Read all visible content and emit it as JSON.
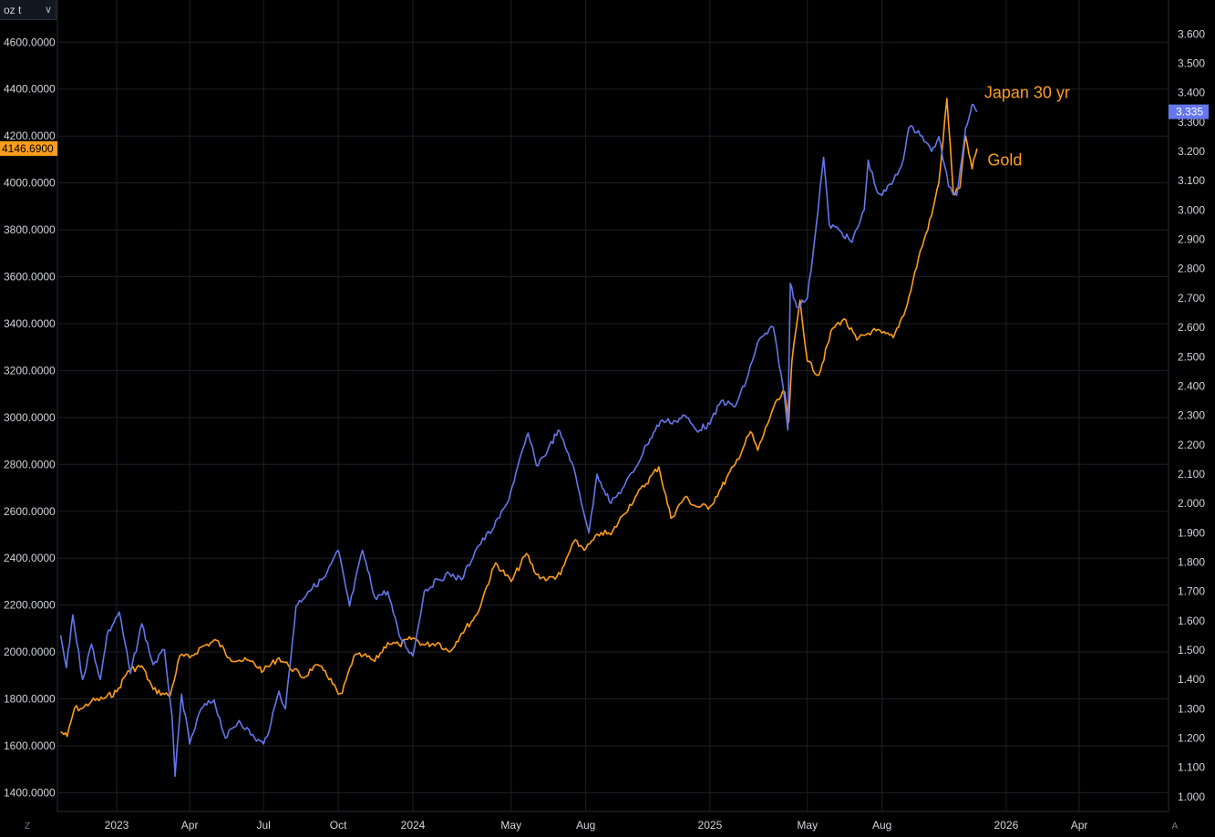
{
  "unit_selector": {
    "label": "oz t",
    "icon": "chevron-down-icon"
  },
  "corner_buttons": {
    "left": "Z",
    "right": "A"
  },
  "colors": {
    "background": "#000000",
    "grid": "#1c1f26",
    "axis_text": "#d1d4dc",
    "gold": "#ff9d1e",
    "japan": "#6477ec"
  },
  "chart_data": {
    "type": "line",
    "title": "",
    "x_axis": {
      "ticks": [
        "2023",
        "Apr",
        "Jul",
        "Oct",
        "2024",
        "May",
        "Aug",
        "2025",
        "May",
        "Aug",
        "2026",
        "Apr"
      ],
      "tick_dates": [
        "2023-01-01",
        "2023-04-01",
        "2023-07-01",
        "2023-10-01",
        "2024-01-01",
        "2024-05-01",
        "2024-08-01",
        "2025-01-01",
        "2025-05-01",
        "2025-08-01",
        "2026-01-01",
        "2026-04-01"
      ],
      "range": [
        "2022-10-20",
        "2026-07-20"
      ]
    },
    "y_left": {
      "unit": "oz t",
      "ticks": [
        "1400.0000",
        "1600.0000",
        "1800.0000",
        "2000.0000",
        "2200.0000",
        "2400.0000",
        "2600.0000",
        "2800.0000",
        "3000.0000",
        "3200.0000",
        "3400.0000",
        "3600.0000",
        "3800.0000",
        "4000.0000",
        "4200.0000",
        "4400.0000",
        "4600.0000"
      ],
      "range": [
        1320,
        4780
      ]
    },
    "y_right": {
      "ticks": [
        "1.000",
        "1.100",
        "1.200",
        "1.300",
        "1.400",
        "1.500",
        "1.600",
        "1.700",
        "1.800",
        "1.900",
        "2.000",
        "2.100",
        "2.200",
        "2.300",
        "2.400",
        "2.500",
        "2.600",
        "2.700",
        "2.800",
        "2.900",
        "3.000",
        "3.100",
        "3.200",
        "3.300",
        "3.400",
        "3.500",
        "3.600"
      ],
      "range": [
        0.95,
        3.716
      ]
    },
    "grid": true,
    "series": [
      {
        "name": "Gold",
        "axis": "left",
        "color": "#ff9d1e",
        "last_value_label": "4146.6900",
        "points": [
          [
            "2022-10-24",
            1660
          ],
          [
            "2022-11-01",
            1640
          ],
          [
            "2022-11-10",
            1760
          ],
          [
            "2022-11-20",
            1760
          ],
          [
            "2022-12-01",
            1790
          ],
          [
            "2022-12-15",
            1800
          ],
          [
            "2023-01-01",
            1830
          ],
          [
            "2023-01-15",
            1920
          ],
          [
            "2023-02-01",
            1940
          ],
          [
            "2023-02-15",
            1840
          ],
          [
            "2023-03-01",
            1820
          ],
          [
            "2023-03-08",
            1815
          ],
          [
            "2023-03-20",
            1985
          ],
          [
            "2023-04-01",
            1975
          ],
          [
            "2023-04-15",
            2020
          ],
          [
            "2023-05-04",
            2050
          ],
          [
            "2023-05-20",
            1975
          ],
          [
            "2023-06-01",
            1965
          ],
          [
            "2023-06-15",
            1960
          ],
          [
            "2023-07-01",
            1920
          ],
          [
            "2023-07-20",
            1975
          ],
          [
            "2023-08-01",
            1940
          ],
          [
            "2023-08-20",
            1890
          ],
          [
            "2023-09-01",
            1940
          ],
          [
            "2023-09-15",
            1920
          ],
          [
            "2023-10-01",
            1820
          ],
          [
            "2023-10-06",
            1825
          ],
          [
            "2023-10-20",
            1980
          ],
          [
            "2023-11-01",
            1985
          ],
          [
            "2023-11-15",
            1960
          ],
          [
            "2023-12-01",
            2040
          ],
          [
            "2023-12-15",
            2030
          ],
          [
            "2024-01-01",
            2060
          ],
          [
            "2024-01-15",
            2030
          ],
          [
            "2024-02-01",
            2040
          ],
          [
            "2024-02-15",
            2000
          ],
          [
            "2024-03-01",
            2080
          ],
          [
            "2024-03-20",
            2160
          ],
          [
            "2024-04-01",
            2280
          ],
          [
            "2024-04-12",
            2380
          ],
          [
            "2024-05-01",
            2300
          ],
          [
            "2024-05-20",
            2420
          ],
          [
            "2024-06-01",
            2330
          ],
          [
            "2024-06-15",
            2310
          ],
          [
            "2024-07-01",
            2330
          ],
          [
            "2024-07-17",
            2470
          ],
          [
            "2024-08-01",
            2440
          ],
          [
            "2024-08-20",
            2510
          ],
          [
            "2024-09-01",
            2500
          ],
          [
            "2024-09-15",
            2580
          ],
          [
            "2024-10-01",
            2660
          ],
          [
            "2024-10-30",
            2790
          ],
          [
            "2024-11-14",
            2570
          ],
          [
            "2024-12-01",
            2660
          ],
          [
            "2024-12-15",
            2620
          ],
          [
            "2025-01-01",
            2620
          ],
          [
            "2025-01-15",
            2700
          ],
          [
            "2025-02-01",
            2800
          ],
          [
            "2025-02-20",
            2940
          ],
          [
            "2025-03-01",
            2860
          ],
          [
            "2025-03-20",
            3040
          ],
          [
            "2025-04-03",
            3110
          ],
          [
            "2025-04-08",
            2980
          ],
          [
            "2025-04-12",
            3240
          ],
          [
            "2025-04-22",
            3500
          ],
          [
            "2025-05-01",
            3240
          ],
          [
            "2025-05-15",
            3180
          ],
          [
            "2025-06-01",
            3380
          ],
          [
            "2025-06-15",
            3420
          ],
          [
            "2025-07-01",
            3330
          ],
          [
            "2025-07-20",
            3370
          ],
          [
            "2025-08-01",
            3360
          ],
          [
            "2025-08-15",
            3340
          ],
          [
            "2025-09-01",
            3480
          ],
          [
            "2025-09-15",
            3680
          ],
          [
            "2025-10-01",
            3860
          ],
          [
            "2025-10-10",
            4000
          ],
          [
            "2025-10-20",
            4360
          ],
          [
            "2025-10-28",
            3950
          ],
          [
            "2025-11-05",
            3980
          ],
          [
            "2025-11-12",
            4200
          ],
          [
            "2025-11-20",
            4060
          ],
          [
            "2025-11-26",
            4146.69
          ]
        ]
      },
      {
        "name": "Japan 30 yr",
        "axis": "right",
        "color": "#6477ec",
        "last_value_label": "3.335",
        "points": [
          [
            "2022-10-24",
            1.55
          ],
          [
            "2022-10-31",
            1.44
          ],
          [
            "2022-11-08",
            1.62
          ],
          [
            "2022-11-20",
            1.4
          ],
          [
            "2022-12-01",
            1.52
          ],
          [
            "2022-12-12",
            1.4
          ],
          [
            "2022-12-20",
            1.55
          ],
          [
            "2023-01-04",
            1.63
          ],
          [
            "2023-01-18",
            1.42
          ],
          [
            "2023-02-01",
            1.59
          ],
          [
            "2023-02-15",
            1.45
          ],
          [
            "2023-03-01",
            1.5
          ],
          [
            "2023-03-10",
            1.28
          ],
          [
            "2023-03-14",
            1.07
          ],
          [
            "2023-03-22",
            1.35
          ],
          [
            "2023-04-01",
            1.18
          ],
          [
            "2023-04-15",
            1.3
          ],
          [
            "2023-05-01",
            1.33
          ],
          [
            "2023-05-15",
            1.2
          ],
          [
            "2023-06-01",
            1.26
          ],
          [
            "2023-06-20",
            1.2
          ],
          [
            "2023-07-01",
            1.18
          ],
          [
            "2023-07-10",
            1.25
          ],
          [
            "2023-07-20",
            1.36
          ],
          [
            "2023-07-28",
            1.3
          ],
          [
            "2023-08-10",
            1.65
          ],
          [
            "2023-08-25",
            1.7
          ],
          [
            "2023-09-15",
            1.75
          ],
          [
            "2023-10-01",
            1.84
          ],
          [
            "2023-10-15",
            1.65
          ],
          [
            "2023-10-31",
            1.84
          ],
          [
            "2023-11-15",
            1.68
          ],
          [
            "2023-12-01",
            1.7
          ],
          [
            "2023-12-15",
            1.55
          ],
          [
            "2024-01-01",
            1.48
          ],
          [
            "2024-01-15",
            1.7
          ],
          [
            "2024-02-01",
            1.74
          ],
          [
            "2024-02-15",
            1.76
          ],
          [
            "2024-03-01",
            1.74
          ],
          [
            "2024-03-20",
            1.85
          ],
          [
            "2024-04-10",
            1.92
          ],
          [
            "2024-04-26",
            2.0
          ],
          [
            "2024-05-22",
            2.24
          ],
          [
            "2024-06-01",
            2.13
          ],
          [
            "2024-06-15",
            2.18
          ],
          [
            "2024-06-28",
            2.25
          ],
          [
            "2024-07-15",
            2.14
          ],
          [
            "2024-08-05",
            1.9
          ],
          [
            "2024-08-15",
            2.1
          ],
          [
            "2024-09-01",
            2.0
          ],
          [
            "2024-09-15",
            2.05
          ],
          [
            "2024-10-01",
            2.12
          ],
          [
            "2024-10-15",
            2.2
          ],
          [
            "2024-11-01",
            2.28
          ],
          [
            "2024-11-20",
            2.28
          ],
          [
            "2024-12-01",
            2.3
          ],
          [
            "2024-12-15",
            2.25
          ],
          [
            "2025-01-01",
            2.27
          ],
          [
            "2025-01-15",
            2.35
          ],
          [
            "2025-02-01",
            2.33
          ],
          [
            "2025-02-15",
            2.42
          ],
          [
            "2025-03-01",
            2.55
          ],
          [
            "2025-03-20",
            2.6
          ],
          [
            "2025-04-01",
            2.4
          ],
          [
            "2025-04-07",
            2.25
          ],
          [
            "2025-04-10",
            2.75
          ],
          [
            "2025-04-18",
            2.67
          ],
          [
            "2025-05-01",
            2.7
          ],
          [
            "2025-05-10",
            2.9
          ],
          [
            "2025-05-21",
            3.18
          ],
          [
            "2025-05-28",
            2.95
          ],
          [
            "2025-06-10",
            2.93
          ],
          [
            "2025-06-25",
            2.89
          ],
          [
            "2025-07-10",
            3.0
          ],
          [
            "2025-07-15",
            3.17
          ],
          [
            "2025-07-25",
            3.07
          ],
          [
            "2025-08-01",
            3.05
          ],
          [
            "2025-08-15",
            3.1
          ],
          [
            "2025-08-25",
            3.15
          ],
          [
            "2025-09-03",
            3.28
          ],
          [
            "2025-09-15",
            3.27
          ],
          [
            "2025-10-01",
            3.2
          ],
          [
            "2025-10-10",
            3.25
          ],
          [
            "2025-10-22",
            3.08
          ],
          [
            "2025-11-01",
            3.05
          ],
          [
            "2025-11-12",
            3.28
          ],
          [
            "2025-11-20",
            3.36
          ],
          [
            "2025-11-26",
            3.335
          ]
        ]
      }
    ],
    "annotations": [
      {
        "text": "Japan 30 yr",
        "color": "#ff9d1e",
        "date": "2025-12-05",
        "value_right": 3.4
      },
      {
        "text": "Gold",
        "color": "#ff9d1e",
        "date": "2025-12-09",
        "value_right": 3.17
      }
    ]
  }
}
